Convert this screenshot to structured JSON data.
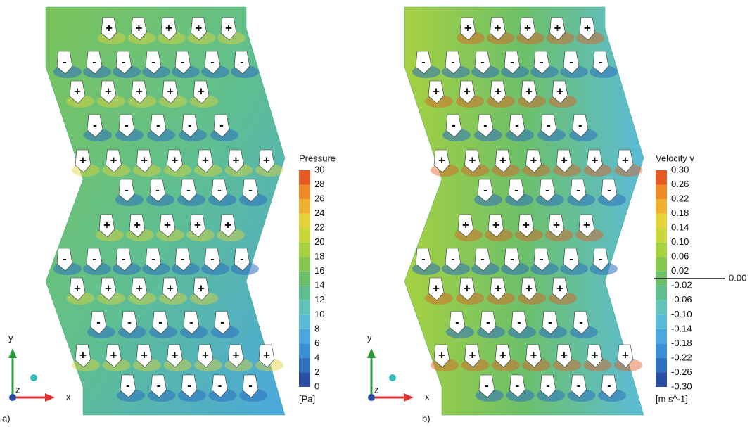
{
  "panels": [
    {
      "label": "a)",
      "legend": {
        "title": "Pressure",
        "ticks": [
          "30",
          "28",
          "26",
          "24",
          "22",
          "20",
          "18",
          "16",
          "14",
          "12",
          "10",
          "8",
          "6",
          "4",
          "2",
          "0"
        ],
        "unit": "[Pa]"
      },
      "axes": {
        "y": "y",
        "x": "x",
        "z": "z"
      },
      "markers": [
        [
          "+",
          "+",
          "+",
          "+",
          "+"
        ],
        [
          "-",
          "-",
          "-",
          "-",
          "-",
          "-",
          "-"
        ],
        [
          "+",
          "+",
          "+",
          "+",
          "+"
        ],
        [
          "-",
          "-",
          "-",
          "-",
          "-"
        ],
        [
          "+",
          "+",
          "+",
          "+",
          "+",
          "+",
          "+"
        ],
        [
          "-",
          "-",
          "-",
          "-",
          "-"
        ],
        [
          "+",
          "+",
          "+",
          "+",
          "+"
        ],
        [
          "-",
          "-",
          "-",
          "-",
          "-",
          "-",
          "-"
        ],
        [
          "+",
          "+",
          "+",
          "+",
          "+"
        ],
        [
          "-",
          "-",
          "-",
          "-",
          "-"
        ],
        [
          "+",
          "+",
          "+",
          "+",
          "+",
          "+",
          "+"
        ],
        [
          "-",
          "-",
          "-",
          "-",
          "-"
        ]
      ]
    },
    {
      "label": "b)",
      "legend": {
        "title": "Velocity v",
        "ticks": [
          "0.30",
          "0.26",
          "0.22",
          "0.18",
          "0.14",
          "0.10",
          "0.06",
          "0.02",
          "-0.02",
          "-0.06",
          "-0.10",
          "-0.14",
          "-0.18",
          "-0.22",
          "-0.26",
          "-0.30"
        ],
        "unit": "[m s^-1]",
        "annotation": "0.00"
      },
      "axes": {
        "y": "y",
        "x": "x",
        "z": "z"
      },
      "markers": [
        [
          "+",
          "+",
          "+",
          "+",
          "+"
        ],
        [
          "-",
          "-",
          "-",
          "-",
          "-",
          "-",
          "-"
        ],
        [
          "+",
          "+",
          "+",
          "+",
          "+"
        ],
        [
          "-",
          "-",
          "-",
          "-",
          "-"
        ],
        [
          "+",
          "+",
          "+",
          "+",
          "+",
          "+",
          "+"
        ],
        [
          "-",
          "-",
          "-",
          "-",
          "-"
        ],
        [
          "+",
          "+",
          "+",
          "+",
          "+"
        ],
        [
          "-",
          "-",
          "-",
          "-",
          "-",
          "-",
          "-"
        ],
        [
          "+",
          "+",
          "+",
          "+",
          "+"
        ],
        [
          "-",
          "-",
          "-",
          "-",
          "-"
        ],
        [
          "+",
          "+",
          "+",
          "+",
          "+",
          "+",
          "+"
        ],
        [
          "-",
          "-",
          "-",
          "-",
          "-"
        ]
      ]
    }
  ]
}
